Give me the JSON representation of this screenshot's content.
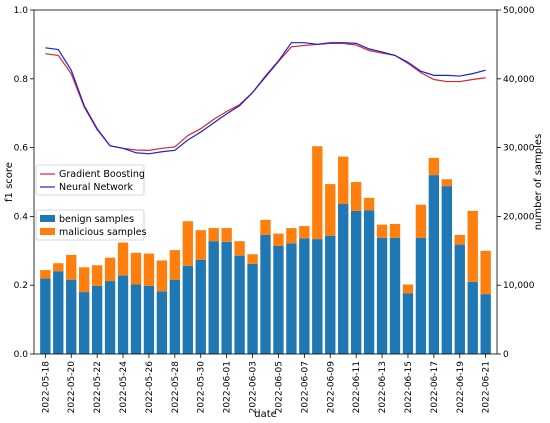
{
  "chart_data": {
    "type": "bar+line",
    "dates": [
      "2022-05-18",
      "2022-05-19",
      "2022-05-20",
      "2022-05-21",
      "2022-05-22",
      "2022-05-23",
      "2022-05-24",
      "2022-05-25",
      "2022-05-26",
      "2022-05-27",
      "2022-05-28",
      "2022-05-29",
      "2022-05-30",
      "2022-05-31",
      "2022-06-01",
      "2022-06-02",
      "2022-06-03",
      "2022-06-04",
      "2022-06-05",
      "2022-06-06",
      "2022-06-07",
      "2022-06-08",
      "2022-06-09",
      "2022-06-10",
      "2022-06-11",
      "2022-06-12",
      "2022-06-13",
      "2022-06-14",
      "2022-06-15",
      "2022-06-16",
      "2022-06-17",
      "2022-06-18",
      "2022-06-19",
      "2022-06-20",
      "2022-06-21"
    ],
    "xtick_labels": [
      "2022-05-18",
      "2022-05-20",
      "2022-05-22",
      "2022-05-24",
      "2022-05-26",
      "2022-05-28",
      "2022-05-30",
      "2022-06-01",
      "2022-06-03",
      "2022-06-05",
      "2022-06-07",
      "2022-06-09",
      "2022-06-11",
      "2022-06-13",
      "2022-06-15",
      "2022-06-17",
      "2022-06-19",
      "2022-06-21"
    ],
    "xlabel": "date",
    "ylabel_left": "f1 score",
    "ylabel_right": "number of samples",
    "ylim_left": [
      0,
      1.0
    ],
    "yticks_left": [
      "0.0",
      "0.2",
      "0.4",
      "0.6",
      "0.8",
      "1.0"
    ],
    "ylim_right": [
      0,
      50000
    ],
    "yticks_right": [
      "0",
      "10,000",
      "20,000",
      "30,000",
      "40,000",
      "50,000"
    ],
    "bar_series": [
      {
        "name": "benign samples",
        "color": "#1f77b4",
        "values": [
          11000,
          12000,
          10800,
          9000,
          9900,
          10600,
          11400,
          10100,
          9900,
          9100,
          10800,
          12800,
          13700,
          16400,
          16300,
          14300,
          13100,
          17300,
          15700,
          16100,
          16800,
          16700,
          17200,
          21800,
          20800,
          20900,
          16900,
          16900,
          8800,
          16900,
          26000,
          24400,
          15900,
          10500,
          8700
        ]
      },
      {
        "name": "malicious samples",
        "color": "#ff7f0e",
        "values": [
          1200,
          1200,
          3600,
          3600,
          3000,
          3400,
          4800,
          4600,
          4700,
          4500,
          4300,
          6500,
          4300,
          1900,
          2000,
          2100,
          1400,
          2200,
          1800,
          2200,
          1800,
          13500,
          7500,
          6900,
          4200,
          1800,
          1900,
          2000,
          1300,
          4800,
          2500,
          1000,
          1400,
          10300,
          6300
        ]
      }
    ],
    "line_series": [
      {
        "name": "Gradient Boosting",
        "color": "#d62728",
        "values": [
          0.873,
          0.868,
          0.815,
          0.718,
          0.652,
          0.605,
          0.598,
          0.593,
          0.592,
          0.598,
          0.602,
          0.635,
          0.655,
          0.682,
          0.705,
          0.725,
          0.76,
          0.805,
          0.85,
          0.893,
          0.897,
          0.9,
          0.903,
          0.903,
          0.898,
          0.882,
          0.875,
          0.868,
          0.845,
          0.818,
          0.798,
          0.792,
          0.792,
          0.798,
          0.803
        ]
      },
      {
        "name": "Neural Network",
        "color": "#1f1fe0",
        "values": [
          0.89,
          0.885,
          0.825,
          0.722,
          0.655,
          0.605,
          0.598,
          0.585,
          0.582,
          0.588,
          0.592,
          0.622,
          0.645,
          0.672,
          0.698,
          0.722,
          0.76,
          0.808,
          0.852,
          0.905,
          0.905,
          0.9,
          0.905,
          0.905,
          0.903,
          0.887,
          0.878,
          0.868,
          0.848,
          0.822,
          0.81,
          0.81,
          0.808,
          0.815,
          0.825
        ]
      }
    ],
    "legend_lines_placement": "center-left",
    "legend_bars_placement": "center-left",
    "grid": false
  }
}
